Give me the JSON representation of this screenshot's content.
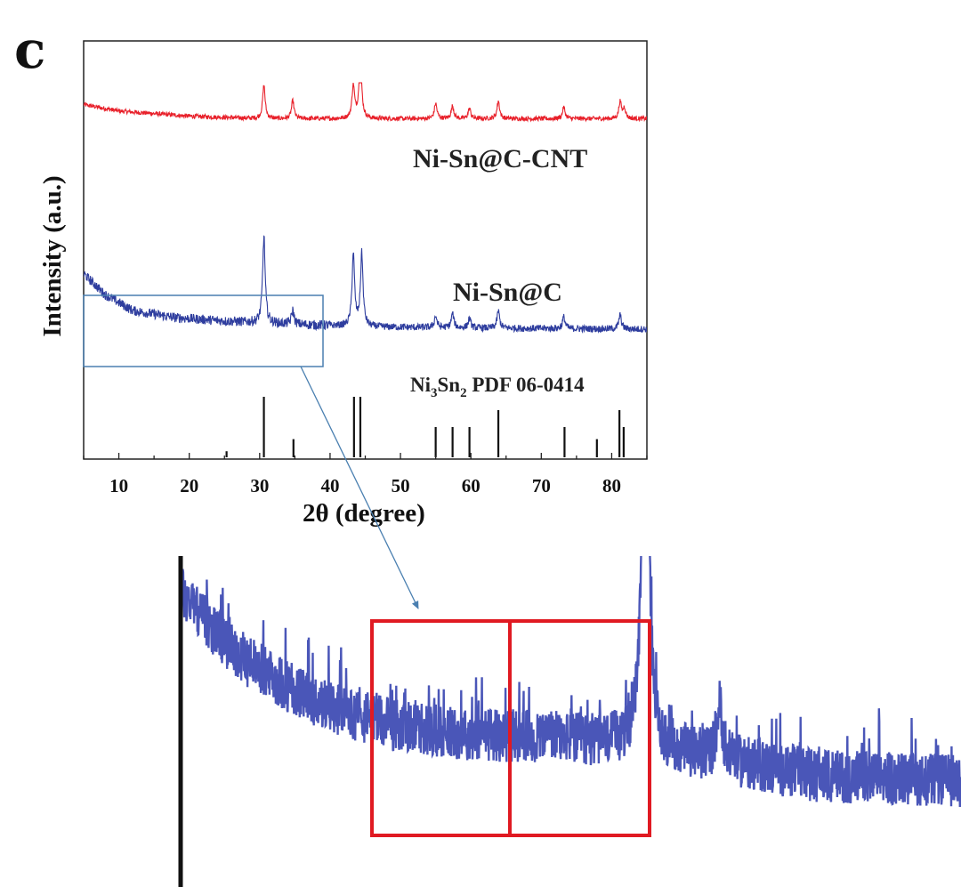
{
  "figure": {
    "panel_letter": "c"
  },
  "chart_data": [
    {
      "type": "line",
      "title": "",
      "xlabel": "2θ (degree)",
      "ylabel": "Intensity (a.u.)",
      "xlim": [
        5,
        85
      ],
      "x_ticks": [
        10,
        20,
        30,
        40,
        50,
        60,
        70,
        80
      ],
      "y_ticks": [],
      "grid": false,
      "legend": "none (series labeled inline)",
      "series": [
        {
          "name": "Ni-Sn@C-CNT",
          "color": "#e8202a",
          "baseline_au": [
            [
              5,
              0.85
            ],
            [
              10,
              0.8
            ],
            [
              20,
              0.76
            ],
            [
              30,
              0.74
            ],
            [
              45,
              0.74
            ],
            [
              60,
              0.74
            ],
            [
              85,
              0.74
            ]
          ],
          "peaks": [
            {
              "x": 30.6,
              "height": 1.0
            },
            {
              "x": 34.7,
              "height": 0.14
            },
            {
              "x": 43.3,
              "height": 1.0
            },
            {
              "x": 44.3,
              "height": 0.5
            },
            {
              "x": 55.0,
              "height": 0.12
            },
            {
              "x": 57.4,
              "height": 0.1
            },
            {
              "x": 59.8,
              "height": 0.08
            },
            {
              "x": 63.9,
              "height": 0.14
            },
            {
              "x": 73.2,
              "height": 0.09
            },
            {
              "x": 81.2,
              "height": 0.13
            },
            {
              "x": 81.8,
              "height": 0.08
            }
          ]
        },
        {
          "name": "Ni-Sn@C",
          "color": "#2e3d9e",
          "baseline_au": [
            [
              5,
              0.68
            ],
            [
              8,
              0.5
            ],
            [
              12,
              0.36
            ],
            [
              18,
              0.3
            ],
            [
              25,
              0.27
            ],
            [
              35,
              0.24
            ],
            [
              45,
              0.22
            ],
            [
              60,
              0.21
            ],
            [
              85,
              0.2
            ]
          ],
          "peaks": [
            {
              "x": 30.6,
              "height": 1.0
            },
            {
              "x": 34.7,
              "height": 0.12
            },
            {
              "x": 43.3,
              "height": 0.85
            },
            {
              "x": 44.5,
              "height": 0.85
            },
            {
              "x": 55.0,
              "height": 0.1
            },
            {
              "x": 57.4,
              "height": 0.12
            },
            {
              "x": 59.8,
              "height": 0.08
            },
            {
              "x": 63.9,
              "height": 0.15
            },
            {
              "x": 73.2,
              "height": 0.1
            },
            {
              "x": 81.2,
              "height": 0.12
            }
          ]
        }
      ],
      "reference": {
        "label": "Ni",
        "label_sub": "3",
        "label_mid": "Sn",
        "label_sub2": "2",
        "label_tail": " PDF 06-0414",
        "color": "#111111",
        "lines": [
          {
            "x": 25.3,
            "intensity": 0.1
          },
          {
            "x": 30.6,
            "intensity": 1.0
          },
          {
            "x": 34.8,
            "intensity": 0.3
          },
          {
            "x": 43.4,
            "intensity": 1.0
          },
          {
            "x": 44.3,
            "intensity": 1.0
          },
          {
            "x": 55.0,
            "intensity": 0.5
          },
          {
            "x": 57.4,
            "intensity": 0.5
          },
          {
            "x": 59.8,
            "intensity": 0.5
          },
          {
            "x": 63.9,
            "intensity": 0.78
          },
          {
            "x": 73.3,
            "intensity": 0.5
          },
          {
            "x": 77.9,
            "intensity": 0.3
          },
          {
            "x": 81.1,
            "intensity": 0.78
          },
          {
            "x": 81.7,
            "intensity": 0.5
          }
        ]
      },
      "annotations": [
        {
          "type": "zoom_box",
          "x_range": [
            5,
            39
          ],
          "color": "#4a7fb0",
          "points_to": "inset"
        }
      ]
    },
    {
      "type": "line",
      "title": "",
      "description_role": "magnified inset of the Ni-Sn@C low-angle region",
      "series": [
        {
          "name": "",
          "color": "#3644b0"
        }
      ],
      "highlight_boxes": [
        {
          "color": "#e01a22"
        },
        {
          "color": "#e01a22"
        }
      ]
    }
  ]
}
